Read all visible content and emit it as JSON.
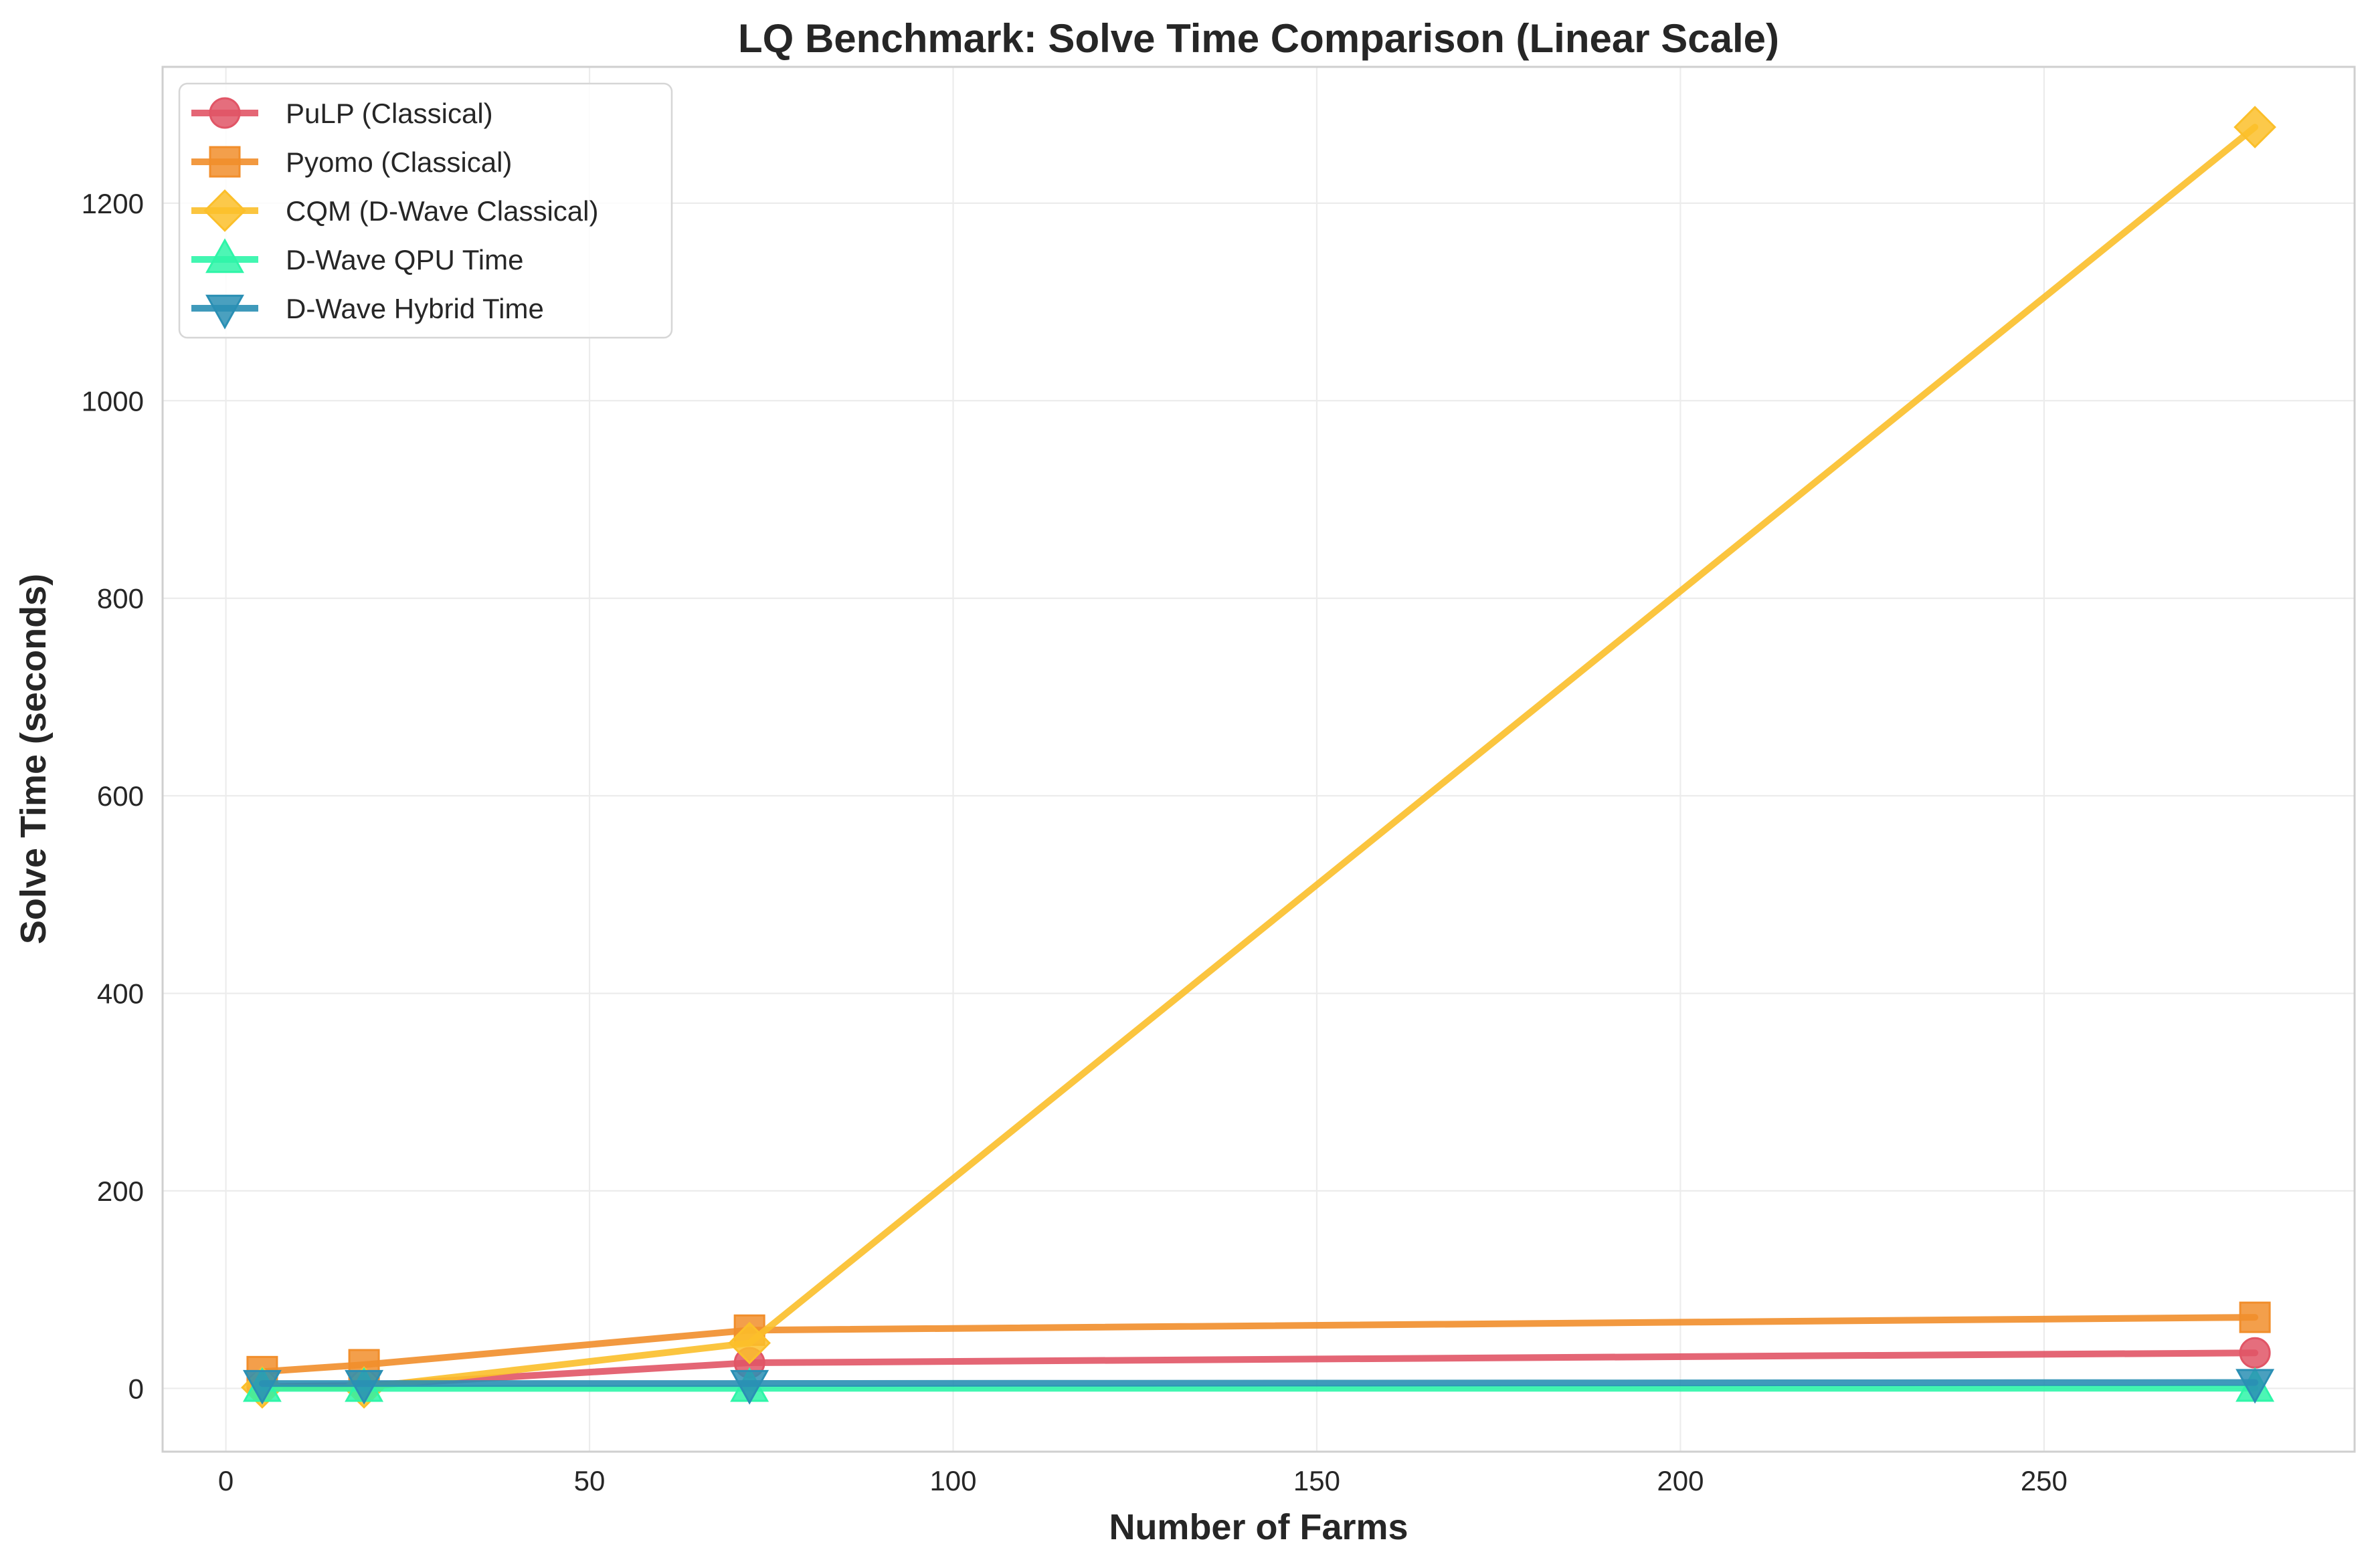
{
  "chart_data": {
    "type": "line",
    "title": "LQ Benchmark: Solve Time Comparison (Linear Scale)",
    "xlabel": "Number of Farms",
    "ylabel": "Solve Time (seconds)",
    "xlim": [
      -8.7,
      292.7
    ],
    "ylim": [
      -64,
      1338
    ],
    "xticks": [
      0,
      50,
      100,
      150,
      200,
      250
    ],
    "yticks": [
      0,
      200,
      400,
      600,
      800,
      1000,
      1200
    ],
    "grid": true,
    "legend_position": "upper-left",
    "x": [
      5,
      19,
      72,
      279
    ],
    "series": [
      {
        "name": "PuLP (Classical)",
        "values": [
          2,
          3,
          26,
          36
        ],
        "color": "#e15566",
        "marker": "circle"
      },
      {
        "name": "Pyomo (Classical)",
        "values": [
          17,
          24,
          59,
          72
        ],
        "color": "#f18e2b",
        "marker": "square"
      },
      {
        "name": "CQM (D-Wave Classical)",
        "values": [
          1,
          1,
          46,
          1277
        ],
        "color": "#fbbf2a",
        "marker": "diamond"
      },
      {
        "name": "D-Wave QPU Time",
        "values": [
          0.1,
          0.1,
          0.1,
          0.2
        ],
        "color": "#2ef5a8",
        "marker": "triangle-up"
      },
      {
        "name": "D-Wave Hybrid Time",
        "values": [
          5,
          5,
          5,
          6
        ],
        "color": "#2a8fb4",
        "marker": "triangle-down"
      }
    ]
  }
}
